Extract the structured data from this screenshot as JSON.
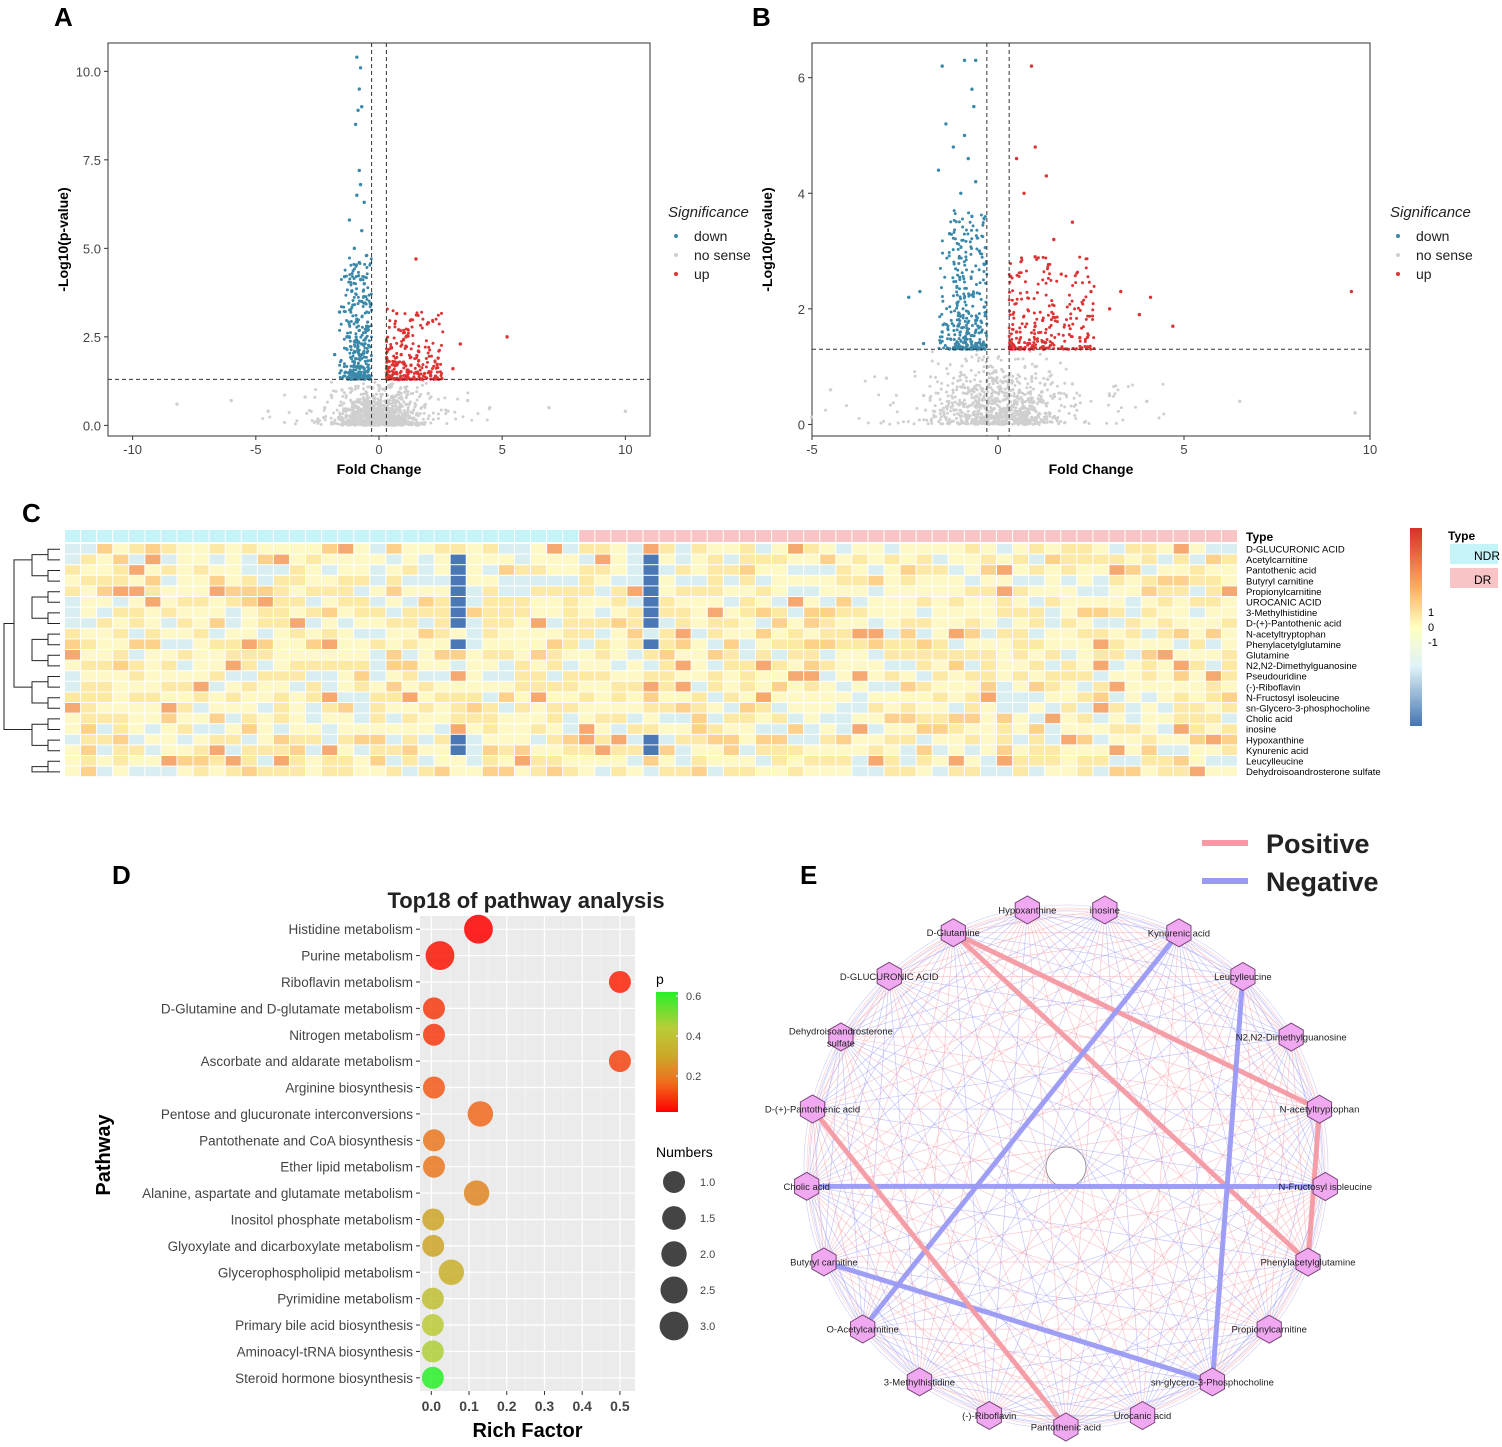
{
  "panels": {
    "A": "A",
    "B": "B",
    "C": "C",
    "D": "D",
    "E": "E"
  },
  "colors": {
    "down": "#3a88aa",
    "up": "#dd3333",
    "nosense": "#cfcfcf",
    "ndr": "#c4f3f8",
    "dr": "#f8c4c6",
    "positive": "#f59aa4",
    "negative": "#9a9af5",
    "node_fill": "#f0a8f0",
    "node_stroke": "#7a447a"
  },
  "chart_data": [
    {
      "id": "volcano-a",
      "type": "scatter",
      "title": "",
      "xlabel": "Fold Change",
      "ylabel": "-Log10(p-value)",
      "xlim": [
        -11,
        11
      ],
      "ylim": [
        -0.3,
        10.8
      ],
      "xticks": [
        -10,
        -5,
        0,
        5,
        10
      ],
      "xtick_labels": [
        "-10",
        "-5",
        "0",
        "5",
        "10"
      ],
      "yticks": [
        0,
        2.5,
        5,
        7.5,
        10
      ],
      "ytick_labels": [
        "0.0",
        "2.5",
        "5.0",
        "7.5",
        "10.0"
      ],
      "fc_thresholds": [
        -0.3,
        0.3
      ],
      "p_threshold": 1.3,
      "legend": {
        "title": "Significance",
        "items": [
          "down",
          "no sense",
          "up"
        ],
        "placement": "right"
      },
      "series": [
        {
          "name": "down",
          "points": [
            [
              -0.9,
              10.4
            ],
            [
              -0.75,
              10.1
            ],
            [
              -0.8,
              9.5
            ],
            [
              -0.7,
              9.0
            ],
            [
              -0.85,
              8.9
            ],
            [
              -0.95,
              8.5
            ],
            [
              -0.8,
              7.2
            ],
            [
              -0.75,
              6.8
            ],
            [
              -0.9,
              6.5
            ],
            [
              -0.6,
              6.3
            ],
            [
              -1.2,
              5.8
            ],
            [
              -0.7,
              5.5
            ],
            [
              -1.0,
              5.0
            ],
            [
              -0.5,
              4.8
            ],
            [
              -0.8,
              4.6
            ],
            [
              -1.4,
              4.2
            ],
            [
              -0.6,
              4.0
            ],
            [
              -1.1,
              3.8
            ],
            [
              -0.7,
              3.5
            ],
            [
              -1.6,
              3.2
            ],
            [
              -0.9,
              3.0
            ],
            [
              -0.5,
              2.8
            ],
            [
              -1.3,
              2.5
            ],
            [
              -0.7,
              2.3
            ],
            [
              -1.8,
              2.0
            ],
            [
              -1.0,
              1.8
            ],
            [
              -0.6,
              1.6
            ],
            [
              -1.2,
              1.5
            ],
            [
              -0.8,
              1.4
            ]
          ]
        },
        {
          "name": "up",
          "points": [
            [
              1.5,
              4.7
            ],
            [
              5.2,
              2.5
            ],
            [
              3.3,
              2.3
            ],
            [
              2.0,
              2.9
            ],
            [
              0.8,
              2.7
            ],
            [
              1.1,
              2.5
            ],
            [
              0.5,
              2.2
            ],
            [
              1.6,
              2.1
            ],
            [
              0.9,
              2.0
            ],
            [
              2.4,
              1.9
            ],
            [
              0.6,
              1.8
            ],
            [
              1.3,
              1.7
            ],
            [
              3.0,
              1.6
            ],
            [
              0.7,
              1.5
            ],
            [
              2.1,
              1.4
            ]
          ]
        },
        {
          "name": "no sense",
          "points": [
            [
              -8.2,
              0.6
            ],
            [
              -6.0,
              0.7
            ],
            [
              -4.5,
              0.4
            ],
            [
              -3.0,
              0.8
            ],
            [
              -2.2,
              0.5
            ],
            [
              -1.5,
              1.0
            ],
            [
              -1.0,
              0.3
            ],
            [
              -0.5,
              0.9
            ],
            [
              0.0,
              0.5
            ],
            [
              0.5,
              1.1
            ],
            [
              1.2,
              0.6
            ],
            [
              2.0,
              0.9
            ],
            [
              2.8,
              0.4
            ],
            [
              3.6,
              0.7
            ],
            [
              4.5,
              0.5
            ],
            [
              6.9,
              0.5
            ],
            [
              10.0,
              0.4
            ]
          ]
        }
      ]
    },
    {
      "id": "volcano-b",
      "type": "scatter",
      "title": "",
      "xlabel": "Fold Change",
      "ylabel": "-Log10(p-value)",
      "xlim": [
        -5,
        10
      ],
      "ylim": [
        -0.2,
        6.6
      ],
      "xticks": [
        -5,
        0,
        5,
        10
      ],
      "xtick_labels": [
        "-5",
        "0",
        "5",
        "10"
      ],
      "yticks": [
        0,
        2,
        4,
        6
      ],
      "ytick_labels": [
        "0",
        "2",
        "4",
        "6"
      ],
      "fc_thresholds": [
        -0.3,
        0.3
      ],
      "p_threshold": 1.3,
      "legend": {
        "title": "Significance",
        "items": [
          "down",
          "no sense",
          "up"
        ],
        "placement": "right"
      },
      "series": [
        {
          "name": "down",
          "points": [
            [
              -0.9,
              6.3
            ],
            [
              -0.6,
              6.3
            ],
            [
              -1.5,
              6.2
            ],
            [
              -0.7,
              5.8
            ],
            [
              -0.65,
              5.5
            ],
            [
              -1.4,
              5.2
            ],
            [
              -0.9,
              5.0
            ],
            [
              -1.2,
              4.8
            ],
            [
              -0.8,
              4.6
            ],
            [
              -1.6,
              4.4
            ],
            [
              -0.6,
              4.2
            ],
            [
              -1.0,
              4.0
            ],
            [
              -0.7,
              3.6
            ],
            [
              -1.3,
              3.3
            ],
            [
              -0.5,
              3.0
            ],
            [
              -2.1,
              2.3
            ],
            [
              -2.4,
              2.2
            ],
            [
              -1.1,
              2.1
            ],
            [
              -0.6,
              1.8
            ],
            [
              -1.5,
              1.6
            ],
            [
              -0.9,
              1.5
            ],
            [
              -2.0,
              1.4
            ],
            [
              -0.4,
              1.4
            ]
          ]
        },
        {
          "name": "up",
          "points": [
            [
              0.9,
              6.2
            ],
            [
              1.0,
              4.8
            ],
            [
              0.5,
              4.6
            ],
            [
              1.3,
              4.3
            ],
            [
              0.7,
              4.0
            ],
            [
              2.0,
              3.5
            ],
            [
              1.5,
              3.2
            ],
            [
              1.0,
              2.9
            ],
            [
              1.7,
              2.6
            ],
            [
              2.5,
              2.3
            ],
            [
              3.3,
              2.3
            ],
            [
              4.1,
              2.2
            ],
            [
              9.5,
              2.3
            ],
            [
              3.0,
              2.0
            ],
            [
              3.8,
              1.9
            ],
            [
              4.7,
              1.7
            ],
            [
              1.2,
              1.8
            ],
            [
              0.5,
              1.6
            ],
            [
              2.2,
              1.5
            ],
            [
              0.8,
              1.4
            ]
          ]
        },
        {
          "name": "no sense",
          "points": [
            [
              -4.5,
              0.6
            ],
            [
              -3.0,
              0.8
            ],
            [
              -2.0,
              0.5
            ],
            [
              -1.0,
              0.9
            ],
            [
              -0.3,
              0.2
            ],
            [
              0.0,
              0.05
            ],
            [
              0.4,
              0.6
            ],
            [
              1.0,
              1.0
            ],
            [
              2.0,
              0.7
            ],
            [
              3.0,
              0.5
            ],
            [
              4.0,
              0.4
            ],
            [
              6.5,
              0.4
            ],
            [
              9.6,
              0.2
            ]
          ]
        }
      ]
    },
    {
      "id": "heatmap-c",
      "type": "heatmap",
      "title": "",
      "annotation_title": "Type",
      "legend": {
        "type_title": "Type",
        "type_items": [
          "NDR",
          "DR"
        ],
        "scale_labels": [
          "1",
          "0",
          "-1"
        ],
        "placement": "right"
      },
      "ndr_count": 32,
      "dr_count": 41,
      "rows": [
        "D-GLUCURONIC ACID",
        "Acetylcarnitine",
        "Pantothenic acid",
        "Butyryl carnitine",
        "Propionylcarnitine",
        "UROCANIC ACID",
        "3-Methylhistidine",
        "D-(+)-Pantothenic acid",
        "N-acetyltryptophan",
        "Phenylacetylglutamine",
        "Glutamine",
        "N2,N2-Dimethylguanosine",
        "Pseudouridine",
        "(-)-Riboflavin",
        "N-Fructosyl isoleucine",
        "sn-Glycero-3-phosphocholine",
        "Cholic acid",
        "inosine",
        "Hypoxanthine",
        "Kynurenic acid",
        "Leucylleucine",
        "Dehydroisoandrosterone sulfate"
      ],
      "row_ticks_text_only": true
    },
    {
      "id": "bubble-d",
      "type": "scatter",
      "title": "Top18 of pathway analysis",
      "xlabel": "Rich Factor",
      "ylabel": "Pathway",
      "xlim": [
        -0.03,
        0.54
      ],
      "xticks": [
        0.0,
        0.1,
        0.2,
        0.3,
        0.4,
        0.5
      ],
      "xtick_labels": [
        "0.0",
        "0.1",
        "0.2",
        "0.3",
        "0.4",
        "0.5"
      ],
      "categories": [
        "Histidine metabolism",
        "Purine metabolism",
        "Riboflavin metabolism",
        "D-Glutamine and D-glutamate metabolism",
        "Nitrogen metabolism",
        "Ascorbate and aldarate metabolism",
        "Arginine biosynthesis",
        "Pentose and glucuronate interconversions",
        "Pantothenate and CoA biosynthesis",
        "Ether lipid metabolism",
        "Alanine, aspartate and glutamate metabolism",
        "Inositol phosphate metabolism",
        "Glyoxylate and dicarboxylate metabolism",
        "Glycerophospholipid metabolism",
        "Pyrimidine metabolism",
        "Primary bile acid biosynthesis",
        "Aminoacyl-tRNA biosynthesis",
        "Steroid hormone biosynthesis"
      ],
      "rich_factor": [
        0.125,
        0.023,
        0.5,
        0.007,
        0.007,
        0.5,
        0.007,
        0.13,
        0.007,
        0.007,
        0.12,
        0.005,
        0.005,
        0.053,
        0.004,
        0.004,
        0.004,
        0.004
      ],
      "numbers": [
        3,
        3,
        1,
        1,
        1,
        1,
        1,
        2,
        1,
        1,
        2,
        1,
        1,
        2,
        1,
        1,
        1,
        1
      ],
      "p": [
        0.02,
        0.06,
        0.09,
        0.13,
        0.13,
        0.15,
        0.19,
        0.22,
        0.25,
        0.25,
        0.28,
        0.35,
        0.35,
        0.38,
        0.43,
        0.46,
        0.48,
        0.62
      ],
      "p_legend": {
        "title": "p",
        "ticks": [
          0.2,
          0.4,
          0.6
        ],
        "tick_labels": [
          "0.2",
          "0.4",
          "0.6"
        ],
        "range": [
          0.02,
          0.62
        ]
      },
      "size_legend": {
        "title": "Numbers",
        "ticks": [
          1.0,
          1.5,
          2.0,
          2.5,
          3.0
        ],
        "tick_labels": [
          "1.0",
          "1.5",
          "2.0",
          "2.5",
          "3.0"
        ]
      }
    },
    {
      "id": "network-e",
      "type": "network",
      "title": "",
      "legend": {
        "positive": "Positive",
        "negative": "Negative",
        "placement": "top-right"
      },
      "nodes": [
        "inosine",
        "Kynurenic acid",
        "Leucylleucine",
        "N2,N2-Dimethylguanosine",
        "N-acetyltryptophan",
        "N-Fructosyl isoleucine",
        "Phenylacetylglutamine",
        "Propionylcarnitine",
        "sn-glycero-3-Phosphocholine",
        "Urocanic acid",
        "Pantothenic acid",
        "(-)-Riboflavin",
        "3-Methylhistidine",
        "O-Acetylcarnitine",
        "Butyryl carnitine",
        "Cholic acid",
        "D-(+)-Pantothenic acid",
        "Dehydroisoandrosterone sulfate",
        "D-GLUCURONIC ACID",
        "D-Glutamine",
        "Hypoxanthine"
      ],
      "strong_edges": [
        {
          "from": "D-Glutamine",
          "to": "Phenylacetylglutamine",
          "sign": "positive"
        },
        {
          "from": "D-Glutamine",
          "to": "N-acetyltryptophan",
          "sign": "positive"
        },
        {
          "from": "N-acetyltryptophan",
          "to": "Phenylacetylglutamine",
          "sign": "positive"
        },
        {
          "from": "Butyryl carnitine",
          "to": "sn-glycero-3-Phosphocholine",
          "sign": "negative"
        },
        {
          "from": "Kynurenic acid",
          "to": "O-Acetylcarnitine",
          "sign": "negative"
        },
        {
          "from": "Leucylleucine",
          "to": "sn-glycero-3-Phosphocholine",
          "sign": "negative"
        },
        {
          "from": "Cholic acid",
          "to": "N-Fructosyl isoleucine",
          "sign": "negative"
        },
        {
          "from": "D-(+)-Pantothenic acid",
          "to": "Pantothenic acid",
          "sign": "positive"
        }
      ]
    }
  ]
}
